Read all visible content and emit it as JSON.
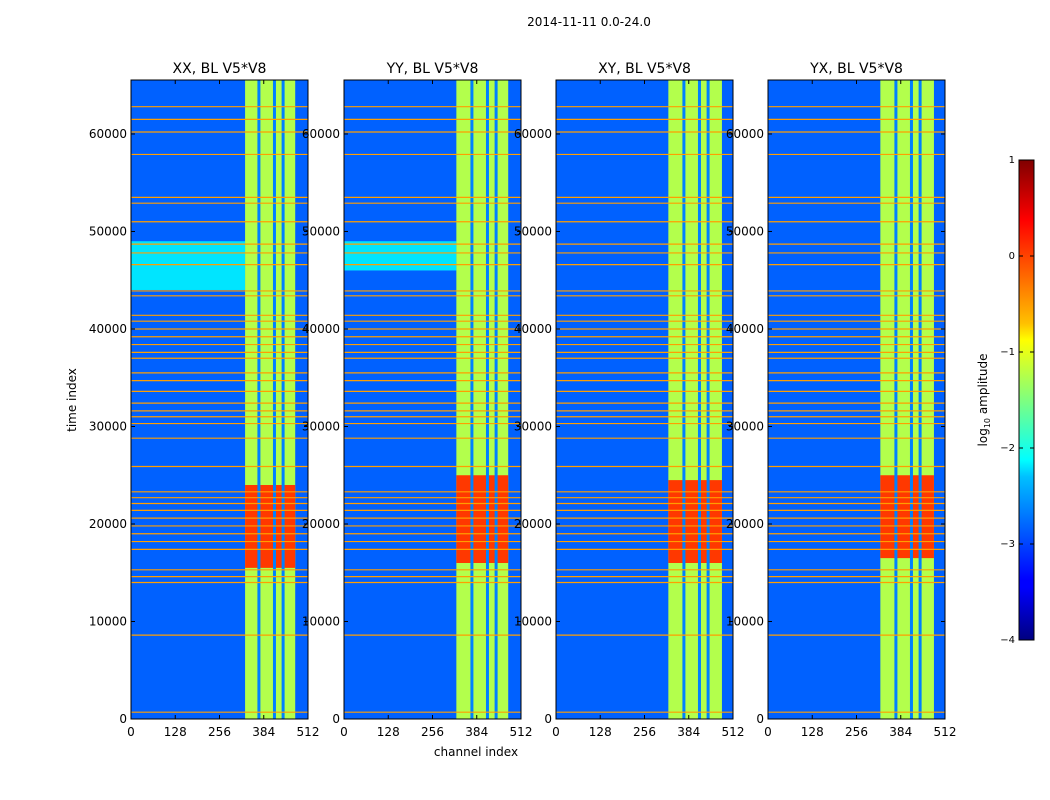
{
  "chart_data": {
    "type": "heatmap",
    "suptitle": "2014-11-11 0.0-24.0",
    "xlabel": "channel index",
    "ylabel": "time index",
    "xlim": [
      0,
      512
    ],
    "ylim": [
      0,
      65536
    ],
    "xticks": [
      0,
      128,
      256,
      384,
      512
    ],
    "xtick_labels": [
      "0",
      "128",
      "256",
      "384",
      "512"
    ],
    "yticks": [
      0,
      10000,
      20000,
      30000,
      40000,
      50000,
      60000
    ],
    "ytick_labels": [
      "0",
      "10000",
      "20000",
      "30000",
      "40000",
      "50000",
      "60000"
    ],
    "colormap": "jet",
    "colorbar": {
      "label_prefix": "log",
      "label_sub": "10",
      "label_suffix": " amplitude",
      "range": [
        -4,
        1
      ],
      "ticks": [
        1,
        0,
        -1,
        -2,
        -3,
        -4
      ],
      "tick_labels": [
        "1",
        "0",
        "−1",
        "−2",
        "−3",
        "−4"
      ]
    },
    "panels": [
      {
        "title": "XX, BL V5*V8",
        "active_channels": [
          330,
          475
        ],
        "strong_time_range": [
          15500,
          24000
        ],
        "weak_band_time": [
          44000,
          49000
        ],
        "peak_level": 0.55
      },
      {
        "title": "YY, BL V5*V8",
        "active_channels": [
          325,
          475
        ],
        "strong_time_range": [
          16000,
          25000
        ],
        "weak_band_time": [
          46000,
          49000
        ],
        "peak_level": 0.6
      },
      {
        "title": "XY, BL V5*V8",
        "active_channels": [
          325,
          480
        ],
        "strong_time_range": [
          16000,
          24500
        ],
        "weak_band_time": null,
        "peak_level": 0.45
      },
      {
        "title": "YX, BL V5*V8",
        "active_channels": [
          325,
          480
        ],
        "strong_time_range": [
          16500,
          25000
        ],
        "weak_band_time": null,
        "peak_level": 0.5
      }
    ],
    "horizontal_rfi_lines": [
      700,
      8600,
      14000,
      14600,
      15300,
      17400,
      18200,
      19000,
      19800,
      20600,
      21400,
      22100,
      22700,
      23300,
      25900,
      28800,
      30300,
      31000,
      31600,
      32400,
      33600,
      34700,
      35500,
      37000,
      37600,
      38400,
      39200,
      40000,
      40800,
      41400,
      43400,
      43900,
      46600,
      47800,
      48700,
      51000,
      52900,
      53500,
      57900,
      60200,
      61500,
      62800
    ],
    "vertical_gap_channels": [
      370,
      415,
      440
    ]
  }
}
